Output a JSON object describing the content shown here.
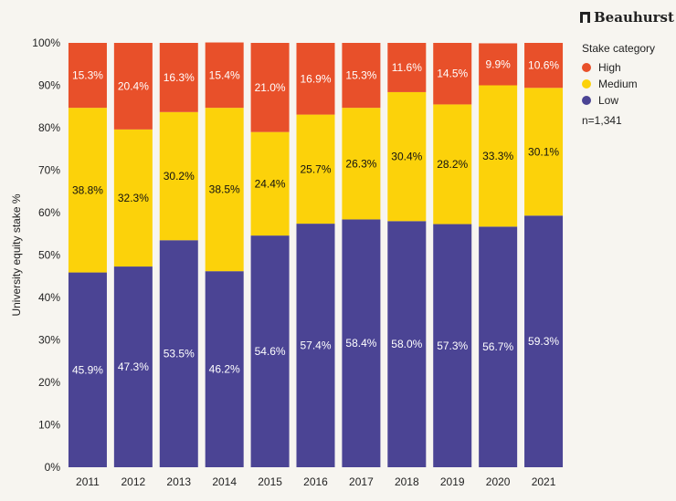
{
  "brand": {
    "name": "Beauhurst"
  },
  "legend": {
    "title": "Stake category",
    "items": [
      {
        "label": "High",
        "color": "#e8502a"
      },
      {
        "label": "Medium",
        "color": "#fcd20a"
      },
      {
        "label": "Low",
        "color": "#4b4494"
      }
    ],
    "note": "n=1,341"
  },
  "chart_data": {
    "type": "bar",
    "stacked": true,
    "ylabel": "University equity stake %",
    "xlabel": "",
    "ylim": [
      0,
      100
    ],
    "y_ticks": [
      "0%",
      "10%",
      "20%",
      "30%",
      "40%",
      "50%",
      "60%",
      "70%",
      "80%",
      "90%",
      "100%"
    ],
    "categories": [
      "2011",
      "2012",
      "2013",
      "2014",
      "2015",
      "2016",
      "2017",
      "2018",
      "2019",
      "2020",
      "2021"
    ],
    "series": [
      {
        "name": "Low",
        "color": "#4b4494",
        "label_color": "#ffffff",
        "values": [
          45.9,
          47.3,
          53.5,
          46.2,
          54.6,
          57.4,
          58.4,
          58.0,
          57.3,
          56.7,
          59.3
        ],
        "labels": [
          "45.9%",
          "47.3%",
          "53.5%",
          "46.2%",
          "54.6%",
          "57.4%",
          "58.4%",
          "58.0%",
          "57.3%",
          "56.7%",
          "59.3%"
        ]
      },
      {
        "name": "Medium",
        "color": "#fcd20a",
        "label_color": "#111111",
        "values": [
          38.8,
          32.3,
          30.2,
          38.5,
          24.4,
          25.7,
          26.3,
          30.4,
          28.2,
          33.3,
          30.1
        ],
        "labels": [
          "38.8%",
          "32.3%",
          "30.2%",
          "38.5%",
          "24.4%",
          "25.7%",
          "26.3%",
          "30.4%",
          "28.2%",
          "33.3%",
          "30.1%"
        ]
      },
      {
        "name": "High",
        "color": "#e8502a",
        "label_color": "#ffffff",
        "values": [
          15.3,
          20.4,
          16.3,
          15.4,
          21.0,
          16.9,
          15.3,
          11.6,
          14.5,
          9.9,
          10.6
        ],
        "labels": [
          "15.3%",
          "20.4%",
          "16.3%",
          "15.4%",
          "21.0%",
          "16.9%",
          "15.3%",
          "11.6%",
          "14.5%",
          "9.9%",
          "10.6%"
        ]
      }
    ],
    "grid": false,
    "legend_position": "right"
  }
}
